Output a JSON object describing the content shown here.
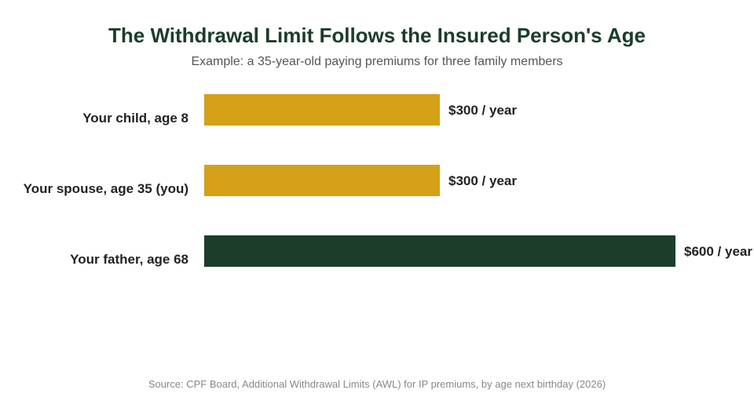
{
  "header": {
    "title": "The Withdrawal Limit Follows the Insured Person's Age",
    "subtitle": "Example: a 35-year-old paying premiums for three family members"
  },
  "footer": {
    "source": "Source: CPF Board, Additional Withdrawal Limits (AWL) for IP premiums, by age next birthday (2026)"
  },
  "colors": {
    "gold": "#d4a017",
    "dark_green": "#1b3d2a"
  },
  "chart_data": {
    "type": "bar",
    "orientation": "horizontal",
    "title": "The Withdrawal Limit Follows the Insured Person's Age",
    "subtitle": "Example: a 35-year-old paying premiums for three family members",
    "categories": [
      "Your child, age 8",
      "Your spouse, age 35 (you)",
      "Your father, age 68"
    ],
    "values": [
      300,
      300,
      600
    ],
    "value_labels": [
      "$300 / year",
      "$300 / year",
      "$600 / year"
    ],
    "bar_colors": [
      "#d4a017",
      "#d4a017",
      "#1b3d2a"
    ],
    "xlim": [
      0,
      600
    ],
    "grid": false,
    "legend": "none",
    "xlabel": "",
    "ylabel": ""
  }
}
